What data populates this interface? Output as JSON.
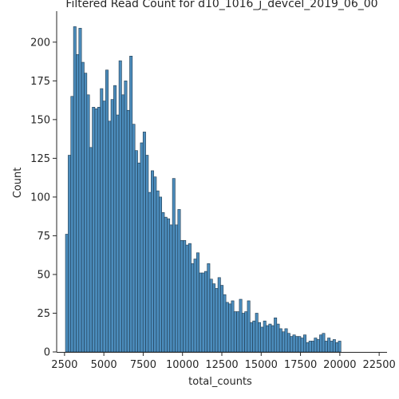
{
  "chart_data": {
    "type": "bar",
    "title": "Filtered Read Count for d10_1016_j_devcel_2019_06_00",
    "xlabel": "total_counts",
    "ylabel": "Count",
    "xlim": [
      2000,
      23000
    ],
    "ylim": [
      0,
      220
    ],
    "xticks": [
      2500,
      5000,
      7500,
      10000,
      12500,
      15000,
      17500,
      20000,
      22500
    ],
    "yticks": [
      0,
      25,
      50,
      75,
      100,
      125,
      150,
      175,
      200
    ],
    "bin_start": 2560,
    "bin_width": 170,
    "values": [
      76,
      127,
      165,
      210,
      192,
      209,
      187,
      180,
      166,
      132,
      158,
      157,
      158,
      170,
      162,
      182,
      149,
      163,
      172,
      153,
      188,
      166,
      175,
      156,
      191,
      147,
      130,
      122,
      135,
      142,
      127,
      103,
      117,
      113,
      104,
      100,
      90,
      87,
      86,
      82,
      112,
      82,
      92,
      72,
      72,
      69,
      70,
      57,
      60,
      64,
      51,
      51,
      52,
      57,
      47,
      44,
      41,
      48,
      43,
      37,
      32,
      31,
      33,
      26,
      26,
      34,
      25,
      26,
      33,
      19,
      20,
      25,
      19,
      16,
      20,
      17,
      18,
      17,
      22,
      18,
      15,
      13,
      15,
      12,
      10,
      11,
      10,
      10,
      9,
      11,
      6,
      7,
      7,
      9,
      8,
      11,
      12,
      7,
      9,
      7,
      8,
      6,
      7
    ],
    "bar_color": "#4c8dbd",
    "bar_edge_color": "#1f3a4f",
    "grid": false,
    "legend": false
  }
}
